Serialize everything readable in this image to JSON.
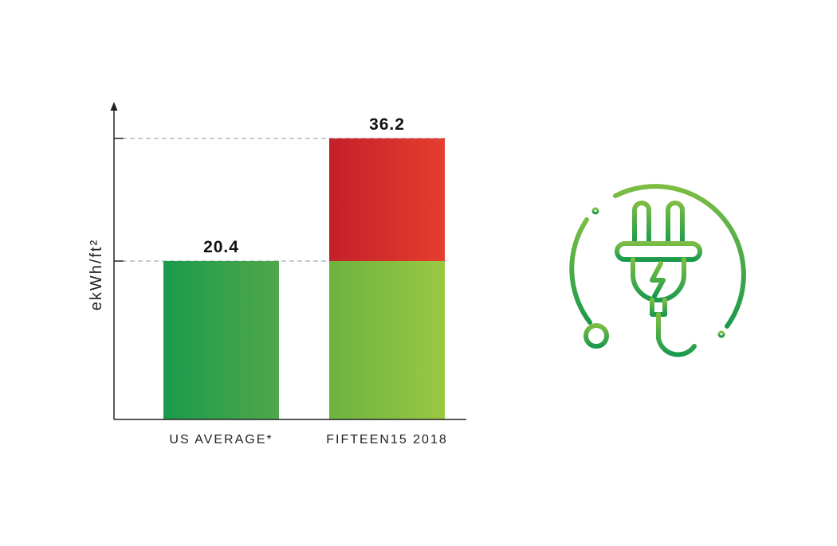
{
  "chart_data": {
    "type": "bar",
    "stacked": true,
    "categories": [
      "US AVERAGE*",
      "FIFTEEN15 2018"
    ],
    "series": [
      {
        "values": [
          20.4,
          20.4
        ]
      },
      {
        "values": [
          0,
          15.8
        ]
      }
    ],
    "totals": [
      20.4,
      36.2
    ],
    "value_labels": [
      "20.4",
      "36.2"
    ],
    "ylabel": "ekWh/ft²",
    "ylim": [
      0,
      41
    ],
    "reference_lines": [
      20.4,
      36.2
    ],
    "colors": {
      "us_average": [
        "#1a9a4c",
        "#50a84a"
      ],
      "base": [
        "#6db33f",
        "#9ac843"
      ],
      "excess": [
        "#c4202a",
        "#e53e2e"
      ],
      "axis": "#222222",
      "dash": "#999999"
    }
  },
  "icon": {
    "name": "electric-plug-icon",
    "color": "#3aa64c"
  }
}
